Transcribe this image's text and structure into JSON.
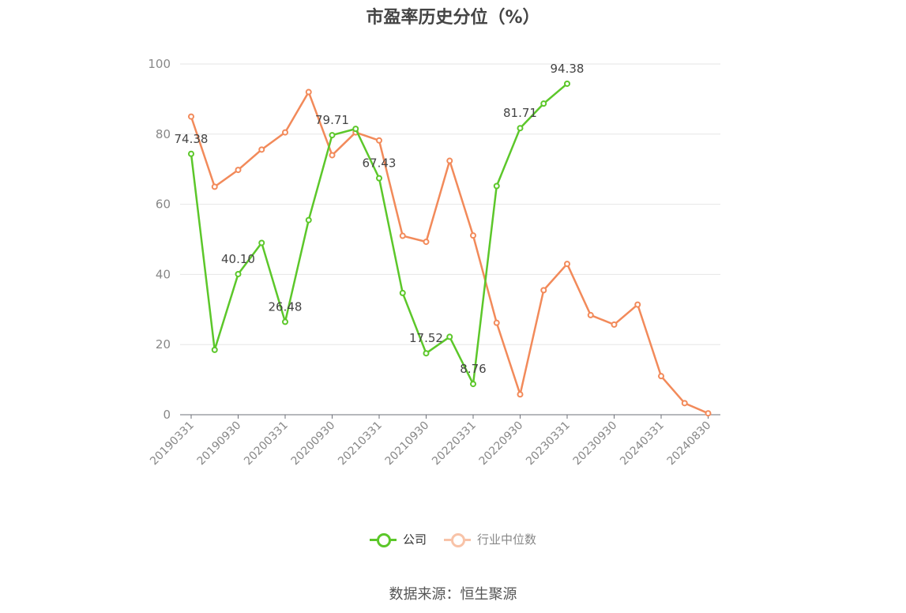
{
  "title": "市盈率历史分位（%）",
  "source": "数据来源：恒生聚源",
  "chart_data": {
    "type": "line",
    "title": "市盈率历史分位（%）",
    "ylim": [
      0,
      100
    ],
    "yticks": [
      0,
      20,
      40,
      60,
      80,
      100
    ],
    "x_tick_labels": [
      "20190331",
      "20190930",
      "20200331",
      "20200930",
      "20210331",
      "20210930",
      "20220331",
      "20220930",
      "20230331",
      "20230930",
      "20240331",
      "20240830"
    ],
    "grid": true,
    "legend_position": "bottom",
    "series": [
      {
        "name": "公司",
        "color": "#5cc72a",
        "values": [
          74.38,
          18.5,
          40.1,
          49.0,
          26.48,
          55.5,
          79.71,
          81.5,
          67.43,
          34.7,
          17.52,
          22.2,
          8.76,
          65.2,
          81.71,
          88.7,
          94.38,
          null,
          null,
          null,
          null,
          null,
          null
        ],
        "labels": {
          "0": "74.38",
          "2": "40.10",
          "4": "26.48",
          "6": "79.71",
          "8": "67.43",
          "10": "17.52",
          "12": "8.76",
          "14": "81.71",
          "16": "94.38"
        }
      },
      {
        "name": "行业中位数",
        "color": "#f28a5a",
        "values": [
          85.0,
          65.0,
          69.8,
          75.6,
          80.5,
          92.0,
          74.0,
          80.5,
          78.2,
          51.0,
          49.3,
          72.4,
          51.1,
          26.2,
          5.8,
          35.5,
          43.0,
          28.4,
          25.7,
          31.4,
          11.0,
          3.3,
          0.4
        ]
      }
    ]
  }
}
